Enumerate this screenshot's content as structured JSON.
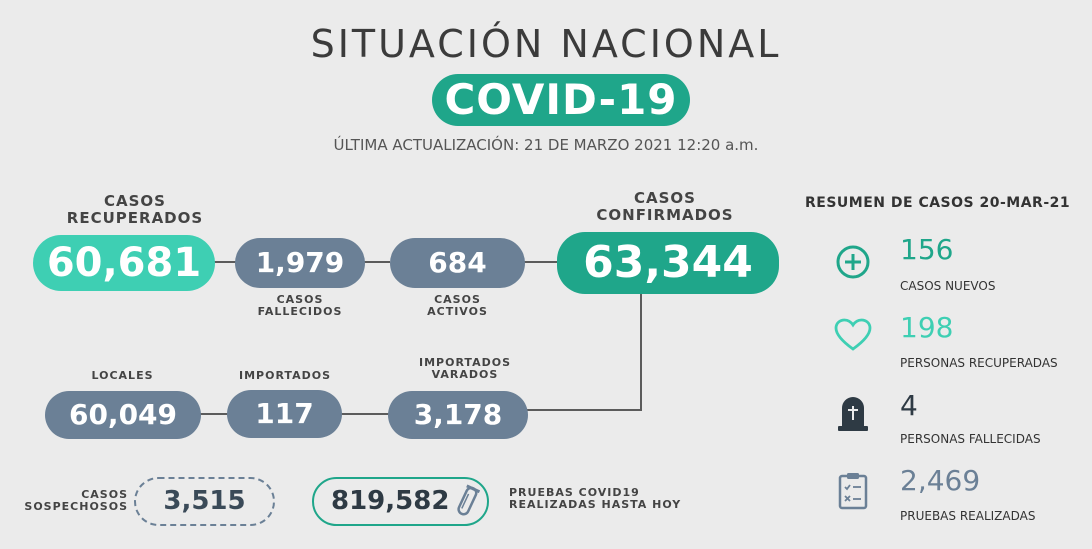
{
  "header": {
    "title": "SITUACIÓN NACIONAL",
    "badge": "COVID-19",
    "updated": "ÚLTIMA ACTUALIZACIÓN: 21 DE MARZO 2021 12:20 a.m."
  },
  "main": {
    "recuperados": {
      "label": "CASOS RECUPERADOS",
      "value": "60,681"
    },
    "fallecidos": {
      "label": "CASOS FALLECIDOS",
      "value": "1,979"
    },
    "activos": {
      "label": "CASOS ACTIVOS",
      "value": "684"
    },
    "confirmados": {
      "label": "CASOS CONFIRMADOS",
      "value": "63,344"
    },
    "locales": {
      "label": "LOCALES",
      "value": "60,049"
    },
    "importados": {
      "label": "IMPORTADOS",
      "value": "117"
    },
    "importados_varados": {
      "label": "IMPORTADOS VARADOS",
      "value": "3,178"
    },
    "sospechosos": {
      "label": "CASOS SOSPECHOSOS",
      "value": "3,515"
    },
    "pruebas": {
      "label": "PRUEBAS COVID19 REALIZADAS HASTA HOY",
      "value": "819,582"
    }
  },
  "resumen": {
    "title": "RESUMEN DE CASOS 20-MAR-21",
    "items": [
      {
        "icon": "plus-circle-icon",
        "value": "156",
        "label": "CASOS NUEVOS",
        "color": "#1fa68a"
      },
      {
        "icon": "heart-icon",
        "value": "198",
        "label": "PERSONAS RECUPERADAS",
        "color": "#3ecfb3"
      },
      {
        "icon": "tombstone-icon",
        "value": "4",
        "label": "PERSONAS FALLECIDAS",
        "color": "#2e3a44"
      },
      {
        "icon": "clipboard-icon",
        "value": "2,469",
        "label": "PRUEBAS REALIZADAS",
        "color": "#6b8096"
      }
    ]
  },
  "colors": {
    "teal": "#3ecfb3",
    "green": "#1fa68a",
    "slate": "#6b8096",
    "background": "#ebebeb"
  }
}
